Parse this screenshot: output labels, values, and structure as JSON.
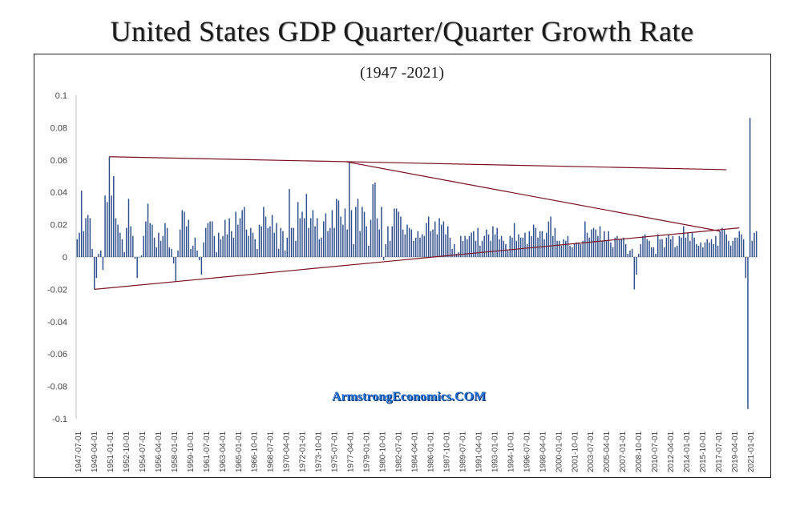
{
  "title": "United States GDP Quarter/Quarter Growth Rate",
  "subtitle": "(1947 -2021)",
  "watermark": "ArmstrongEconomics.COM",
  "colors": {
    "bars": "#2e4e8c",
    "trendlines": "#7a1020",
    "axis": "#bfbfbf"
  },
  "chart_data": {
    "type": "bar",
    "title": "United States GDP Quarter/Quarter Growth Rate",
    "subtitle": "(1947 -2021)",
    "ylim": [
      -0.1,
      0.1
    ],
    "yticks": [
      "0.1",
      "0.08",
      "0.06",
      "0.04",
      "0.02",
      "0",
      "-0.02",
      "-0.04",
      "-0.06",
      "-0.08",
      "-0.1"
    ],
    "ytick_values": [
      0.1,
      0.08,
      0.06,
      0.04,
      0.02,
      0,
      -0.02,
      -0.04,
      -0.06,
      -0.08,
      -0.1
    ],
    "xticks": [
      "1947-07-01",
      "1949-04-01",
      "1951-01-01",
      "1952-10-01",
      "1954-07-01",
      "1956-04-01",
      "1958-01-01",
      "1959-10-01",
      "1961-07-01",
      "1963-04-01",
      "1965-01-01",
      "1966-10-01",
      "1968-07-01",
      "1970-04-01",
      "1972-01-01",
      "1973-10-01",
      "1975-07-01",
      "1977-04-01",
      "1979-01-01",
      "1980-10-01",
      "1982-07-01",
      "1984-04-01",
      "1986-01-01",
      "1987-10-01",
      "1989-07-01",
      "1991-04-01",
      "1993-01-01",
      "1994-10-01",
      "1996-07-01",
      "1998-04-01",
      "2000-01-01",
      "2001-10-01",
      "2003-07-01",
      "2005-04-01",
      "2007-01-01",
      "2008-10-01",
      "2010-07-01",
      "2012-04-01",
      "2014-01-01",
      "2015-10-01",
      "2017-07-01",
      "2019-04-01",
      "2021-01-01"
    ],
    "values": [
      0.011,
      0.015,
      0.041,
      0.016,
      0.024,
      0.026,
      0.024,
      0.005,
      -0.02,
      -0.013,
      0.002,
      0.004,
      -0.008,
      0.038,
      0.034,
      0.062,
      0.038,
      0.05,
      0.024,
      0.02,
      0.015,
      0.011,
      0.003,
      0.018,
      0.036,
      0.019,
      0.013,
      -0.001,
      -0.013,
      0,
      0.001,
      0.013,
      0.022,
      0.033,
      0.021,
      0.02,
      0.012,
      0.006,
      0.015,
      0.01,
      0.013,
      0.021,
      0.018,
      0.006,
      0.005,
      -0.004,
      -0.015,
      0.004,
      0.017,
      0.029,
      0.028,
      0.019,
      0.023,
      0.005,
      0.007,
      0.012,
      0.004,
      -0.002,
      -0.011,
      0.009,
      0.018,
      0.021,
      0.022,
      0.022,
      0.013,
      0.003,
      0.015,
      0.011,
      0.013,
      0.023,
      0.014,
      0.024,
      0.016,
      0.012,
      0.028,
      0.02,
      0.024,
      0.029,
      0.031,
      0.017,
      0.013,
      0.018,
      0.015,
      0.011,
      0.005,
      0.02,
      0.019,
      0.031,
      0.025,
      0.018,
      0.019,
      0.026,
      0.015,
      0.021,
      0.005,
      0.018,
      0.016,
      0.004,
      0.012,
      0.042,
      0.018,
      0.018,
      0.01,
      0.034,
      0.024,
      0.028,
      0.024,
      0.039,
      0.018,
      0.024,
      0.029,
      0.019,
      0.024,
      0.011,
      0.012,
      0.022,
      0.027,
      0.016,
      0.018,
      0.029,
      0.018,
      0.036,
      0.035,
      0.025,
      0.02,
      0.03,
      0.017,
      0.059,
      0.029,
      0.008,
      0.031,
      0.036,
      0.016,
      0.031,
      0.028,
      0.019,
      0.007,
      0.023,
      0.045,
      0.046,
      0.024,
      0.017,
      0.031,
      -0.002,
      0.008,
      0.019,
      0.01,
      0.019,
      0.03,
      0.03,
      0.028,
      0.025,
      0.017,
      0.014,
      0.02,
      0.018,
      0.017,
      0.01,
      0.012,
      0.016,
      0.012,
      0.014,
      0.013,
      0.021,
      0.025,
      0.016,
      0.017,
      0.022,
      0.014,
      0.024,
      0.02,
      0.022,
      0.014,
      0.019,
      0.012,
      0.005,
      0.008,
      0.002,
      0.003,
      0.013,
      0.01,
      0.013,
      0.011,
      0.013,
      0.015,
      0.016,
      0.01,
      0.018,
      0.007,
      0.01,
      0.013,
      0.017,
      0.014,
      0.01,
      0.019,
      0.014,
      0.018,
      0.011,
      0.013,
      0.01,
      0.008,
      0.004,
      0.013,
      0.012,
      0.021,
      0.01,
      0.014,
      0.012,
      0.012,
      0.015,
      0.008,
      0.016,
      0.013,
      0.02,
      0.018,
      0.012,
      0.016,
      0.016,
      0.011,
      0.015,
      0.022,
      0.025,
      0.013,
      0.018,
      0.01,
      0.01,
      0.007,
      0.011,
      0.01,
      0.013,
      0.007,
      0.006,
      0.008,
      0.009,
      0.009,
      0.008,
      0.01,
      0.022,
      0.015,
      0.012,
      0.017,
      0.018,
      0.017,
      0.013,
      0.019,
      0.01,
      0.016,
      0.01,
      0.016,
      0.009,
      0.006,
      0.012,
      0.013,
      0.011,
      0.011,
      0.012,
      0.008,
      0.002,
      0.004,
      0.005,
      -0.02,
      -0.011,
      0.002,
      0.008,
      0.013,
      0.014,
      0.011,
      0.01,
      0.006,
      0.006,
      0.002,
      0.014,
      0.011,
      0.011,
      0.006,
      0.012,
      0.014,
      0.011,
      0.013,
      0.006,
      0.007,
      0.013,
      0.012,
      0.019,
      0.012,
      0.015,
      0.01,
      0.015,
      0.012,
      0.008,
      0.007,
      0.009,
      0.006,
      0.009,
      0.011,
      0.009,
      0.011,
      0.008,
      0.013,
      0.007,
      0.016,
      0.018,
      0.017,
      0.014,
      0.01,
      0.007,
      0.01,
      0.012,
      0.012,
      0.016,
      0.014,
      0.011,
      -0.013,
      -0.094,
      0.086,
      0.01,
      0.015,
      0.016
    ]
  },
  "trendlines": [
    {
      "name": "upper",
      "from": {
        "index": 15,
        "value": 0.062
      },
      "to": {
        "index": 303,
        "value": 0.054
      }
    },
    {
      "name": "upper-to-apex",
      "from": {
        "index": 125,
        "value": 0.059
      },
      "to": {
        "index": 300,
        "value": 0.016
      }
    },
    {
      "name": "lower",
      "from": {
        "index": 8,
        "value": -0.02
      },
      "to": {
        "index": 309,
        "value": 0.018
      }
    }
  ]
}
